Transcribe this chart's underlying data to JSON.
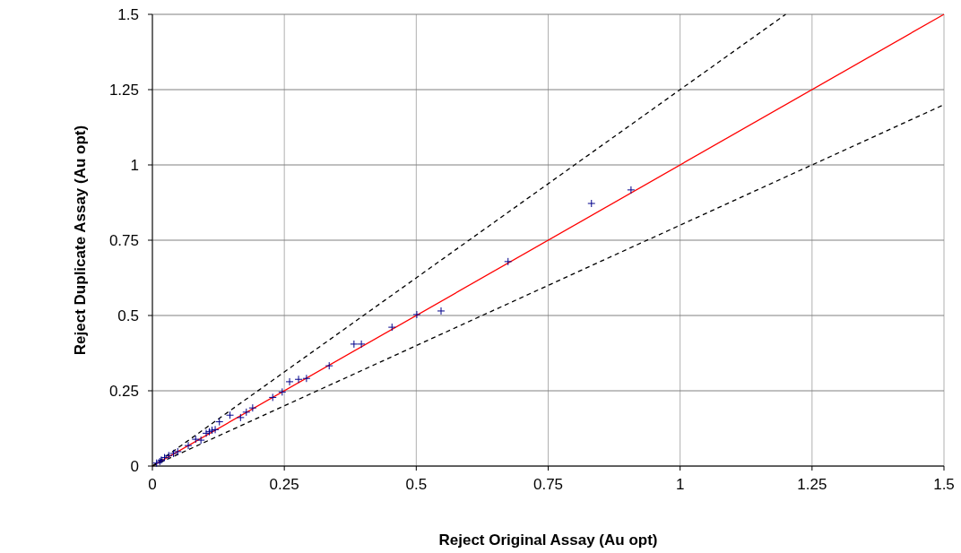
{
  "chart_data": {
    "type": "scatter",
    "xlabel": "Reject Original Assay (Au opt)",
    "ylabel": "Reject Duplicate Assay (Au opt)",
    "xlim": [
      0,
      1.5
    ],
    "ylim": [
      0,
      1.5
    ],
    "xticks": [
      0,
      0.25,
      0.5,
      0.75,
      1,
      1.25,
      1.5
    ],
    "yticks": [
      0,
      0.25,
      0.5,
      0.75,
      1,
      1.25,
      1.5
    ],
    "grid": true,
    "series": [
      {
        "type": "line",
        "color": "#ff0000",
        "line_style": "solid",
        "x": [
          0,
          1.5
        ],
        "values": [
          0,
          1.5
        ]
      },
      {
        "type": "line",
        "color": "#000000",
        "line_style": "dashed",
        "x": [
          0,
          1.2
        ],
        "values": [
          0,
          1.5
        ]
      },
      {
        "type": "line",
        "color": "#000000",
        "line_style": "dashed",
        "x": [
          0,
          1.5
        ],
        "values": [
          0,
          1.2
        ]
      },
      {
        "color": "#00008b",
        "marker": "cross",
        "x": [
          0.907,
          0.832,
          0.674,
          0.547,
          0.501,
          0.454,
          0.396,
          0.382,
          0.335,
          0.292,
          0.277,
          0.26,
          0.246,
          0.228,
          0.19,
          0.178,
          0.167,
          0.147,
          0.127,
          0.119,
          0.113,
          0.108,
          0.102,
          0.092,
          0.082,
          0.068,
          0.048,
          0.04,
          0.031,
          0.023,
          0.017,
          0.014,
          0.008
        ],
        "values": [
          0.917,
          0.872,
          0.679,
          0.515,
          0.503,
          0.461,
          0.405,
          0.405,
          0.333,
          0.291,
          0.288,
          0.28,
          0.246,
          0.228,
          0.193,
          0.179,
          0.161,
          0.169,
          0.147,
          0.121,
          0.119,
          0.114,
          0.109,
          0.086,
          0.089,
          0.068,
          0.048,
          0.042,
          0.035,
          0.028,
          0.02,
          0.015,
          0.01
        ]
      }
    ]
  }
}
